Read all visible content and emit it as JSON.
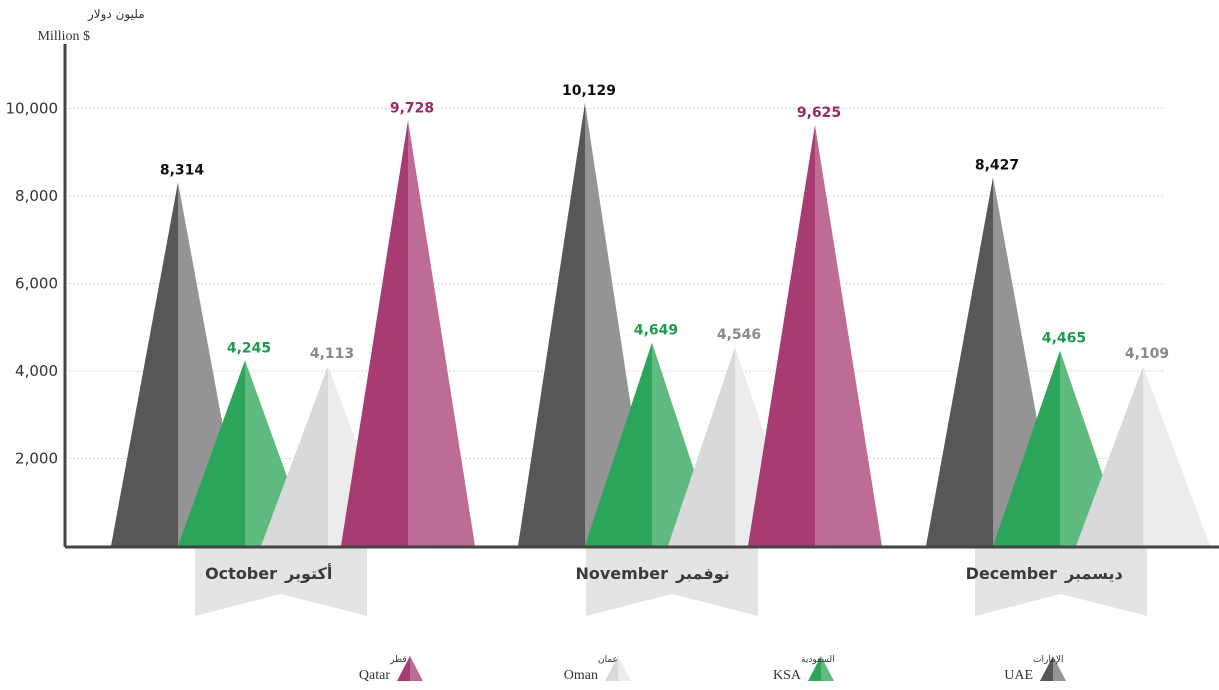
{
  "chart_data": {
    "type": "bar",
    "y_unit_ar": "مليون دولار",
    "y_unit_en": "Million $",
    "ylim": [
      0,
      11000
    ],
    "yticks": [
      2000,
      4000,
      6000,
      8000,
      10000
    ],
    "ytick_labels": [
      "2,000",
      "4,000",
      "6,000",
      "8,000",
      "10,000"
    ],
    "grid": true,
    "legend_position": "bottom",
    "categories": [
      {
        "en": "October",
        "ar": "أكتوبر"
      },
      {
        "en": "November",
        "ar": "نوفمبر"
      },
      {
        "en": "December",
        "ar": "ديسمبر"
      }
    ],
    "series": [
      {
        "name": "UAE",
        "name_ar": "الإمارات",
        "color_dark": "#575757",
        "color_light": "#949396",
        "label_color": "#111111",
        "values": [
          8314,
          10129,
          8427
        ],
        "labels": [
          "8,314",
          "10,129",
          "8,427"
        ]
      },
      {
        "name": "KSA",
        "name_ar": "السعودية",
        "color_dark": "#2aa55a",
        "color_light": "#5fba80",
        "label_color": "#1d9a4c",
        "values": [
          4245,
          4649,
          4465
        ],
        "labels": [
          "4,245",
          "4,649",
          "4,465"
        ]
      },
      {
        "name": "Oman",
        "name_ar": "عمان",
        "color_dark": "#d9d9db",
        "color_light": "#ececec",
        "label_color": "#8a8a8a",
        "values": [
          4113,
          4546,
          4109
        ],
        "labels": [
          "4,113",
          "4,546",
          "4,109"
        ]
      },
      {
        "name": "Qatar",
        "name_ar": "قطر",
        "color_dark": "#a83c72",
        "color_light": "#bd6c96",
        "label_color": "#9b2860",
        "values": [
          9728,
          9625,
          null
        ],
        "labels": [
          "9,728",
          "9,625",
          ""
        ]
      }
    ]
  },
  "colors": {
    "axis": "#444444",
    "grid": "#d6d6d6",
    "month_tab": "#e3e4e4"
  }
}
